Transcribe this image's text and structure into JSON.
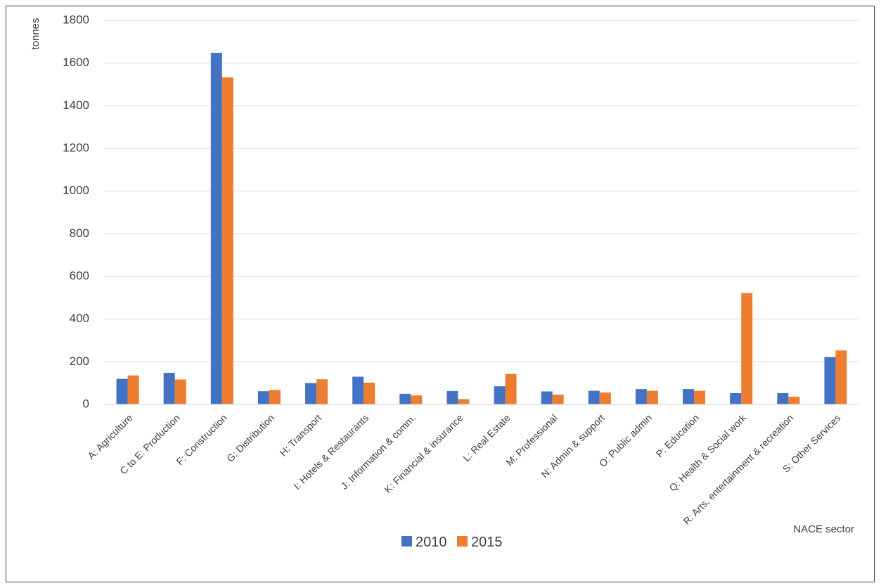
{
  "chart_data": {
    "type": "bar",
    "title": "",
    "xlabel": "NACE sector",
    "ylabel": "tonnes",
    "ylim": [
      0,
      1800
    ],
    "yticks": [
      0,
      200,
      400,
      600,
      800,
      1000,
      1200,
      1400,
      1600,
      1800
    ],
    "grid": true,
    "legend_position": "bottom",
    "categories": [
      "A: Agriculture",
      "C to E: Production",
      "F: Construction",
      "G: Distribution",
      "H: Transport",
      "I: Hotels & Restaurants",
      "J: Information & comm.",
      "K: Financial & insurance",
      "L: Real Estate",
      "M: Professional",
      "N: Admin & support",
      "O: Public admin",
      "P: Education",
      "Q: Health & Social work",
      "R: Arts, entertainment & recreation",
      "S: Other Services"
    ],
    "series": [
      {
        "name": "2010",
        "color": "#4472C4",
        "values": [
          120,
          148,
          1648,
          62,
          100,
          130,
          50,
          63,
          85,
          61,
          64,
          72,
          72,
          53,
          53,
          222
        ]
      },
      {
        "name": "2015",
        "color": "#ED7D31",
        "values": [
          136,
          117,
          1533,
          68,
          118,
          102,
          42,
          25,
          143,
          46,
          56,
          64,
          64,
          522,
          36,
          253
        ]
      }
    ]
  }
}
